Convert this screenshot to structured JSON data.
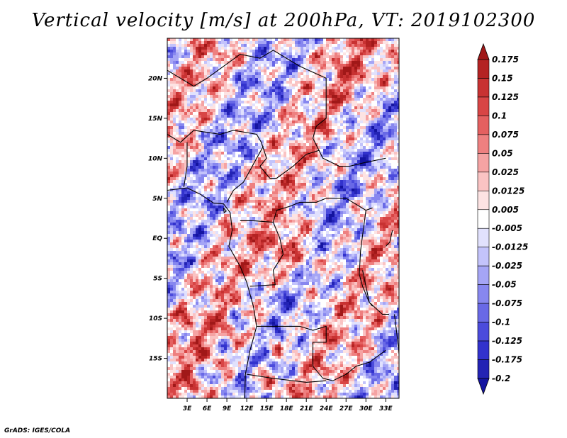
{
  "chart_data": {
    "type": "heatmap",
    "title": "Vertical velocity [m/s] at 200hPa, VT: 2019102300",
    "variable": "Vertical velocity",
    "units": "m/s",
    "level": "200hPa",
    "valid_time": "2019102300",
    "x_ticks": [
      "3E",
      "6E",
      "9E",
      "12E",
      "15E",
      "18E",
      "21E",
      "24E",
      "27E",
      "30E",
      "33E"
    ],
    "x_tick_values": [
      3,
      6,
      9,
      12,
      15,
      18,
      21,
      24,
      27,
      30,
      33
    ],
    "y_ticks": [
      "20N",
      "15N",
      "10N",
      "5N",
      "EQ",
      "5S",
      "10S",
      "15S"
    ],
    "y_tick_values": [
      20,
      15,
      10,
      5,
      0,
      -5,
      -10,
      -15
    ],
    "xlim": [
      0,
      35
    ],
    "ylim": [
      -20,
      25
    ],
    "colorbar_levels": [
      "0.175",
      "0.15",
      "0.125",
      "0.1",
      "0.075",
      "0.05",
      "0.025",
      "0.0125",
      "0.005",
      "-0.005",
      "-0.0125",
      "-0.025",
      "-0.05",
      "-0.075",
      "-0.1",
      "-0.125",
      "-0.175",
      "-0.2"
    ],
    "colorbar_colors": [
      "#a01818",
      "#b42323",
      "#c83232",
      "#d84545",
      "#e46060",
      "#ee8080",
      "#f5a3a3",
      "#fac3c3",
      "#fde3e3",
      "#ffffff",
      "#e1e1fd",
      "#c3c3fb",
      "#a5a5f5",
      "#8787ef",
      "#6969e6",
      "#4b4bdc",
      "#3232cd",
      "#2323b4",
      "#1414a0"
    ]
  },
  "credit": "GrADS: IGES/COLA"
}
